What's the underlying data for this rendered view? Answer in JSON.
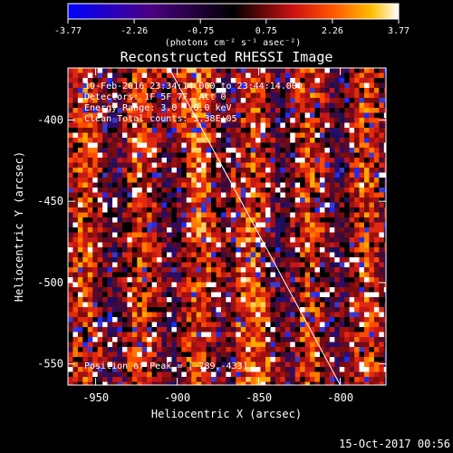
{
  "colorbar": {
    "min": -3.77,
    "max": 3.77,
    "tick_labels": [
      "-3.77",
      "-2.26",
      "-0.75",
      "0.75",
      "2.26",
      "3.77"
    ],
    "units_label": "(photons cm⁻² s⁻¹ asec⁻²)"
  },
  "header": {
    "line_time": "19-Feb-2016 23:34:14.000 to 23:44:14.000",
    "line_detectors": "Detectors: 1F 5F 7F, Att 0",
    "line_energy": "Energy Range: 3.0 - 6.0 keV",
    "line_clean": "Clean    Total counts: 3.38E+05"
  },
  "footer": {
    "peak_label": "Position of Peak = [-789,-433]",
    "timestamp": "15-Oct-2017 00:56"
  },
  "chart_data": {
    "type": "heatmap",
    "title": "Reconstructed RHESSI Image",
    "xlabel": "Heliocentric X (arcsec)",
    "ylabel": "Heliocentric Y (arcsec)",
    "xlim": [
      -967,
      -772
    ],
    "ylim": [
      -563,
      -368
    ],
    "x_ticks": [
      -950,
      -900,
      -850,
      -800
    ],
    "y_ticks": [
      -550,
      -500,
      -450,
      -400
    ],
    "grid": false,
    "color_scale": [
      "#0000ff",
      "#4b0082",
      "#000000",
      "#b22222",
      "#ff4500",
      "#ffa500",
      "#ffffff"
    ],
    "limb_line": {
      "points": [
        [
          -905,
          -368
        ],
        [
          -800,
          -563
        ]
      ]
    },
    "peak_position": [
      -789,
      -433
    ]
  }
}
